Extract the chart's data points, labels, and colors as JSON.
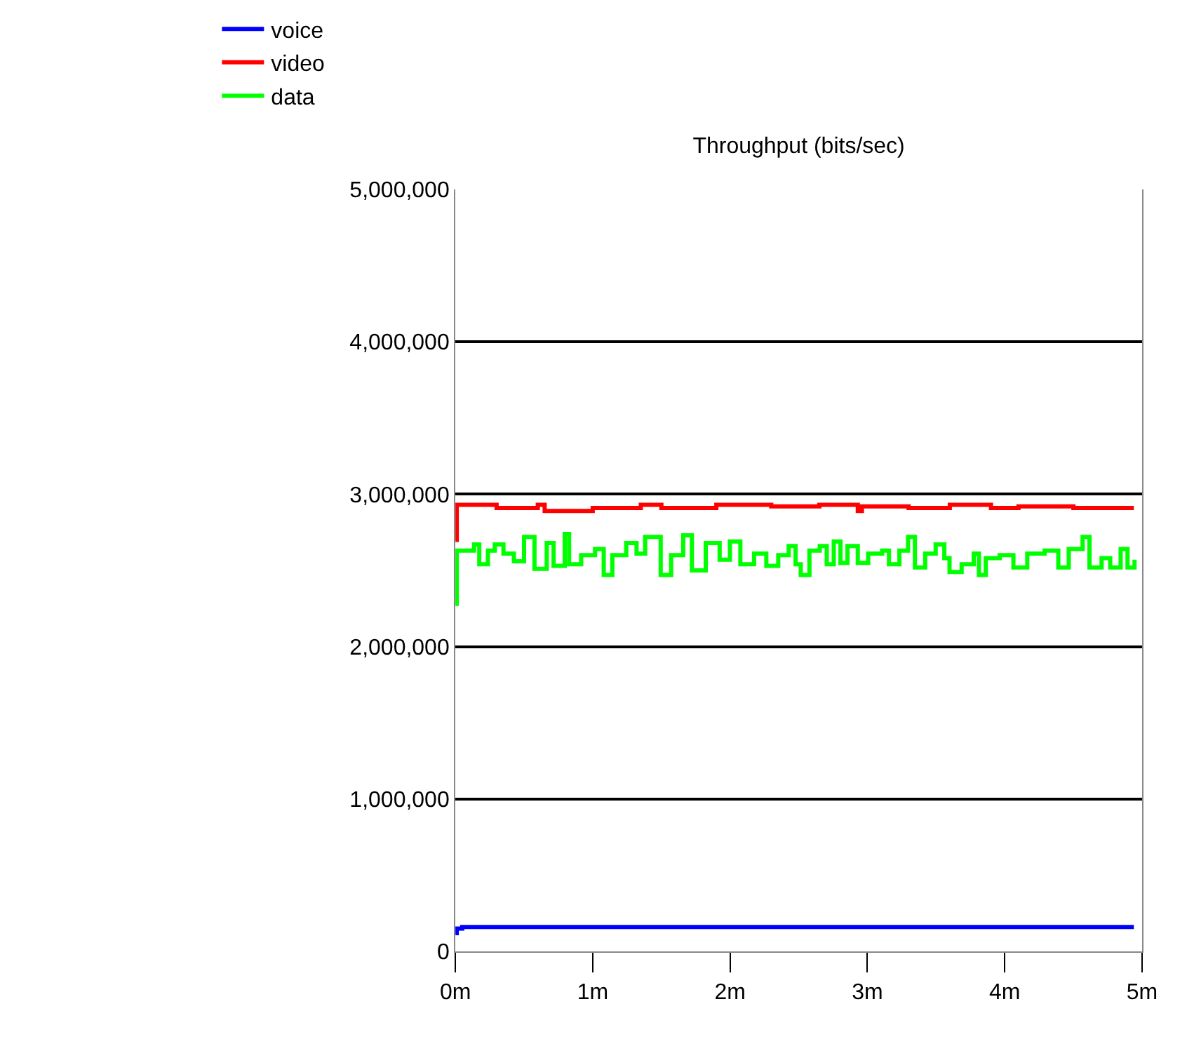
{
  "chart_data": {
    "type": "step",
    "title": "Throughput (bits/sec)",
    "xlim": [
      0,
      5
    ],
    "xticks": [
      {
        "value": 0,
        "label": "0m"
      },
      {
        "value": 1,
        "label": "1m"
      },
      {
        "value": 2,
        "label": "2m"
      },
      {
        "value": 3,
        "label": "3m"
      },
      {
        "value": 4,
        "label": "4m"
      },
      {
        "value": 5,
        "label": "5m"
      }
    ],
    "ylim": [
      0,
      5000000
    ],
    "yticks": [
      0,
      {
        "value": 1000000,
        "label": "1,000,000"
      },
      {
        "value": 2000000,
        "label": "2,000,000"
      },
      {
        "value": 3000000,
        "label": "3,000,000"
      },
      {
        "value": 4000000,
        "label": "4,000,000"
      },
      {
        "value": 5000000,
        "label": "5,000,000"
      }
    ],
    "grid": "y",
    "legend": "top left",
    "line_style": "solid",
    "marker": "none",
    "series": [
      {
        "name": "voice",
        "color": "#0000ff",
        "x": [
          0,
          0.01,
          0.05,
          4.94
        ],
        "values": [
          120000,
          150000,
          160000,
          160000
        ]
      },
      {
        "name": "video",
        "color": "#ff0000",
        "x": [
          0,
          0.01,
          0.3,
          0.6,
          0.65,
          1.0,
          1.35,
          1.5,
          1.9,
          2.3,
          2.65,
          2.93,
          2.96,
          3.3,
          3.6,
          3.9,
          4.1,
          4.5,
          4.94
        ],
        "values": [
          2700000,
          2930000,
          2910000,
          2930000,
          2890000,
          2910000,
          2930000,
          2910000,
          2930000,
          2920000,
          2930000,
          2890000,
          2920000,
          2910000,
          2930000,
          2910000,
          2920000,
          2910000,
          2910000
        ]
      },
      {
        "name": "data",
        "color": "#00ff00",
        "x": [
          0,
          0.01,
          0.136,
          0.174,
          0.237,
          0.287,
          0.35,
          0.426,
          0.5,
          0.576,
          0.665,
          0.715,
          0.796,
          0.828,
          0.916,
          1.017,
          1.08,
          1.143,
          1.244,
          1.319,
          1.382,
          1.495,
          1.571,
          1.659,
          1.722,
          1.823,
          1.924,
          1.999,
          2.075,
          2.175,
          2.264,
          2.351,
          2.427,
          2.477,
          2.515,
          2.578,
          2.653,
          2.704,
          2.755,
          2.804,
          2.855,
          2.93,
          3.006,
          3.107,
          3.157,
          3.233,
          3.296,
          3.346,
          3.421,
          3.497,
          3.56,
          3.598,
          3.686,
          3.774,
          3.812,
          3.862,
          3.963,
          4.063,
          4.164,
          4.29,
          4.39,
          4.466,
          4.567,
          4.617,
          4.705,
          4.768,
          4.844,
          4.894,
          4.945
        ],
        "values": [
          2280000,
          2630000,
          2670000,
          2540000,
          2630000,
          2670000,
          2610000,
          2560000,
          2720000,
          2510000,
          2680000,
          2530000,
          2740000,
          2540000,
          2600000,
          2640000,
          2470000,
          2600000,
          2680000,
          2610000,
          2720000,
          2470000,
          2600000,
          2730000,
          2500000,
          2680000,
          2570000,
          2690000,
          2540000,
          2610000,
          2530000,
          2600000,
          2660000,
          2540000,
          2470000,
          2630000,
          2660000,
          2540000,
          2690000,
          2550000,
          2660000,
          2550000,
          2610000,
          2630000,
          2540000,
          2630000,
          2720000,
          2520000,
          2610000,
          2670000,
          2580000,
          2490000,
          2540000,
          2610000,
          2470000,
          2580000,
          2600000,
          2520000,
          2610000,
          2630000,
          2520000,
          2640000,
          2720000,
          2520000,
          2580000,
          2520000,
          2640000,
          2520000,
          2570000
        ]
      }
    ]
  }
}
